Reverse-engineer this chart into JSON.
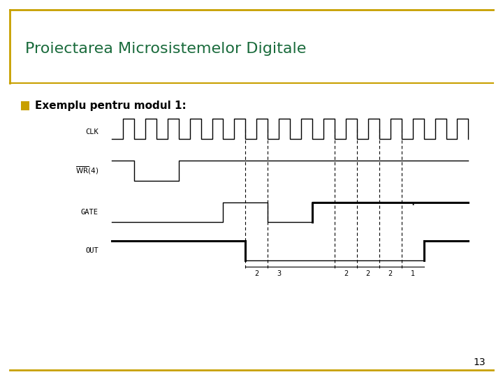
{
  "title": "Proiectarea Microsistemelor Digitale",
  "subtitle": "Exemplu pentru modul 1:",
  "background_color": "#ffffff",
  "title_text_color": "#1a6b3c",
  "subtitle_text_color": "#000000",
  "bullet_color": "#c8a000",
  "border_color": "#c8a000",
  "slide_number": "13",
  "total_time": 16,
  "dashed_positions": [
    6,
    7,
    10,
    11,
    12,
    13
  ],
  "out_labels": [
    {
      "x": 6.5,
      "text": "2"
    },
    {
      "x": 7.5,
      "text": "3"
    },
    {
      "x": 10.5,
      "text": "2"
    },
    {
      "x": 11.5,
      "text": "2"
    },
    {
      "x": 12.5,
      "text": "2"
    },
    {
      "x": 13.5,
      "text": "1"
    }
  ]
}
